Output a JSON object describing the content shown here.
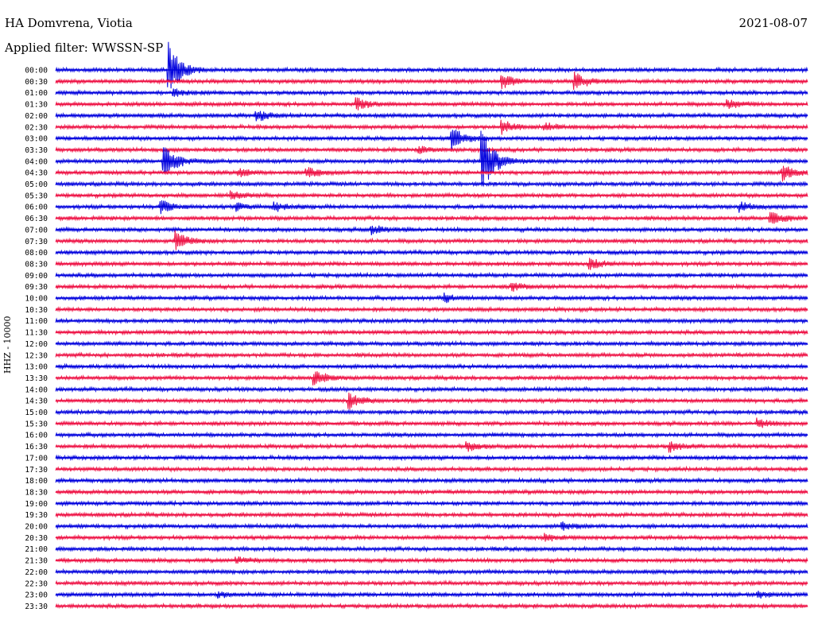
{
  "header": {
    "station": "HA Domvrena, Viotia",
    "date": "2021-08-07",
    "filter": "Applied filter: WWSSN-SP"
  },
  "chart_data": {
    "type": "line",
    "title": "HA Domvrena, Viotia",
    "subtitle": "Applied filter: WWSSN-SP",
    "date": "2021-08-07",
    "ylabel": "HHZ - 10000",
    "xlabel": "",
    "grid": false,
    "legend": "none",
    "colors": {
      "even": "#0000dd",
      "odd": "#ee1144"
    },
    "rows": [
      "00:00",
      "00:30",
      "01:00",
      "01:30",
      "02:00",
      "02:30",
      "03:00",
      "03:30",
      "04:00",
      "04:30",
      "05:00",
      "05:30",
      "06:00",
      "06:30",
      "07:00",
      "07:30",
      "08:00",
      "08:30",
      "09:00",
      "09:30",
      "10:00",
      "10:30",
      "11:00",
      "11:30",
      "12:00",
      "12:30",
      "13:00",
      "13:30",
      "14:00",
      "14:30",
      "15:00",
      "15:30",
      "16:00",
      "16:30",
      "17:00",
      "17:30",
      "18:00",
      "18:30",
      "19:00",
      "19:30",
      "20:00",
      "20:30",
      "21:00",
      "21:30",
      "22:00",
      "22:30",
      "23:00",
      "23:30"
    ],
    "events": [
      {
        "row": "00:00",
        "minute": 4.5,
        "amplitude": 5.0
      },
      {
        "row": "00:30",
        "minute": 17.8,
        "amplitude": 1.2
      },
      {
        "row": "00:30",
        "minute": 20.7,
        "amplitude": 1.7
      },
      {
        "row": "01:00",
        "minute": 4.7,
        "amplitude": 0.6
      },
      {
        "row": "01:30",
        "minute": 12.0,
        "amplitude": 1.0
      },
      {
        "row": "01:30",
        "minute": 26.8,
        "amplitude": 0.8
      },
      {
        "row": "02:00",
        "minute": 8.0,
        "amplitude": 1.0
      },
      {
        "row": "02:30",
        "minute": 17.8,
        "amplitude": 1.2
      },
      {
        "row": "02:30",
        "minute": 19.5,
        "amplitude": 0.7
      },
      {
        "row": "03:00",
        "minute": 15.8,
        "amplitude": 2.0
      },
      {
        "row": "03:30",
        "minute": 14.5,
        "amplitude": 0.5
      },
      {
        "row": "04:00",
        "minute": 4.3,
        "amplitude": 3.5
      },
      {
        "row": "04:00",
        "minute": 17.0,
        "amplitude": 6.0
      },
      {
        "row": "04:30",
        "minute": 7.3,
        "amplitude": 0.7
      },
      {
        "row": "04:30",
        "minute": 10.0,
        "amplitude": 1.0
      },
      {
        "row": "04:30",
        "minute": 29.0,
        "amplitude": 1.5
      },
      {
        "row": "05:30",
        "minute": 7.0,
        "amplitude": 0.7
      },
      {
        "row": "06:00",
        "minute": 4.2,
        "amplitude": 1.2
      },
      {
        "row": "06:00",
        "minute": 7.2,
        "amplitude": 0.6
      },
      {
        "row": "06:00",
        "minute": 8.7,
        "amplitude": 0.8
      },
      {
        "row": "06:00",
        "minute": 27.3,
        "amplitude": 0.8
      },
      {
        "row": "06:30",
        "minute": 28.5,
        "amplitude": 1.5
      },
      {
        "row": "07:00",
        "minute": 12.6,
        "amplitude": 0.8
      },
      {
        "row": "07:30",
        "minute": 4.8,
        "amplitude": 1.6
      },
      {
        "row": "08:30",
        "minute": 21.3,
        "amplitude": 1.0
      },
      {
        "row": "09:30",
        "minute": 18.2,
        "amplitude": 0.7
      },
      {
        "row": "10:00",
        "minute": 15.5,
        "amplitude": 0.8
      },
      {
        "row": "13:30",
        "minute": 10.3,
        "amplitude": 1.3
      },
      {
        "row": "14:30",
        "minute": 11.7,
        "amplitude": 1.5
      },
      {
        "row": "15:30",
        "minute": 28.0,
        "amplitude": 0.8
      },
      {
        "row": "16:30",
        "minute": 16.4,
        "amplitude": 0.8
      },
      {
        "row": "16:30",
        "minute": 24.5,
        "amplitude": 0.9
      },
      {
        "row": "20:00",
        "minute": 20.2,
        "amplitude": 0.6
      },
      {
        "row": "20:30",
        "minute": 19.5,
        "amplitude": 0.6
      },
      {
        "row": "21:30",
        "minute": 7.2,
        "amplitude": 0.6
      },
      {
        "row": "23:00",
        "minute": 6.5,
        "amplitude": 0.5
      },
      {
        "row": "23:00",
        "minute": 28.0,
        "amplitude": 0.6
      }
    ]
  }
}
